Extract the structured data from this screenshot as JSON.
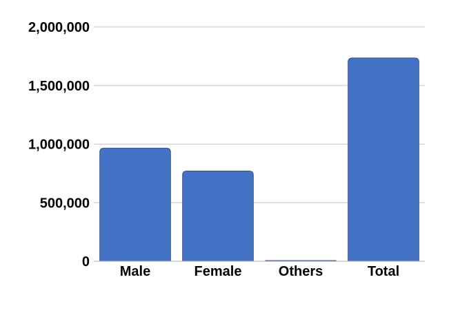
{
  "chart_data": {
    "type": "bar",
    "categories": [
      "Male",
      "Female",
      "Others",
      "Total"
    ],
    "values": [
      965000,
      770000,
      1000,
      1735000
    ],
    "title": "",
    "xlabel": "",
    "ylabel": "",
    "ylim": [
      0,
      2000000
    ],
    "yticks": [
      0,
      500000,
      1000000,
      1500000,
      2000000
    ],
    "ytick_labels": [
      "0",
      "500,000",
      "1,000,000",
      "1,500,000",
      "2,000,000"
    ],
    "grid": true,
    "legend": "none",
    "bar_color": "#4472c4",
    "bar_edge_color": "#2f528f"
  }
}
